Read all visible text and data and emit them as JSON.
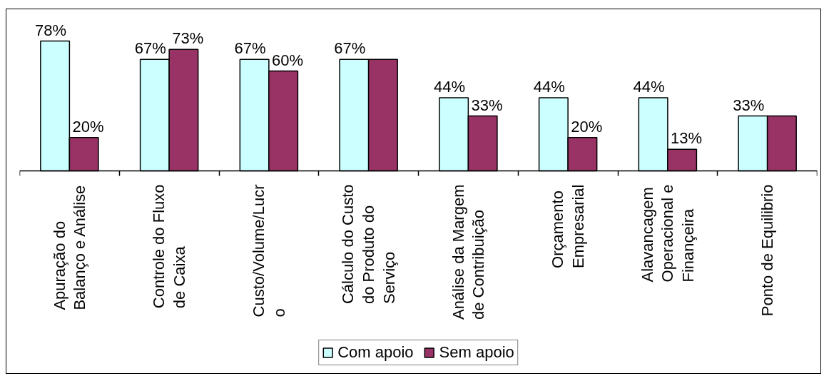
{
  "chart_data": {
    "type": "bar",
    "categories": [
      "Apuração do\nBalanço e Análise",
      "Controle do Fluxo\nde Caixa",
      "Custo/Volume/Lucr\no",
      "Cálculo do Custo\ndo Produto do\nServiço",
      "Análise da Margem\nde Contribuição",
      "Orçamento\nEmpresarial",
      "Alavancagem\nOperacional e\nFinançeira",
      "Ponto de Equilibrio"
    ],
    "series": [
      {
        "name": "Com apoio",
        "color": "#ccffff",
        "values": [
          78,
          67,
          67,
          67,
          44,
          44,
          44,
          33
        ],
        "value_labels": [
          "78%",
          "67%",
          "67%",
          "67%",
          "44%",
          "44%",
          "44%",
          "33%"
        ]
      },
      {
        "name": "Sem apoio",
        "color": "#993366",
        "values": [
          20,
          73,
          60,
          67,
          33,
          20,
          13,
          33
        ],
        "value_labels": [
          "20%",
          "73%",
          "60%",
          null,
          "33%",
          "20%",
          "13%",
          null
        ]
      }
    ],
    "tick_labels": "x",
    "legend": "bottom"
  }
}
